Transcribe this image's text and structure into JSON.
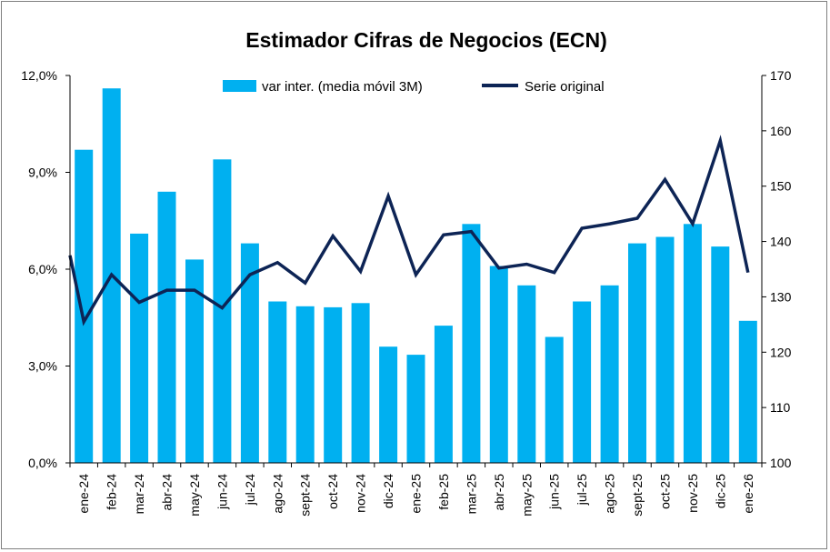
{
  "chart_data": {
    "type": "bar+line",
    "title": "Estimador Cifras de Negocios (ECN)",
    "categories": [
      "ene-24",
      "feb-24",
      "mar-24",
      "abr-24",
      "may-24",
      "jun-24",
      "jul-24",
      "ago-24",
      "sept-24",
      "oct-24",
      "nov-24",
      "dic-24",
      "ene-25",
      "feb-25",
      "mar-25",
      "abr-25",
      "may-25",
      "jun-25",
      "jul-25",
      "ago-25",
      "sept-25",
      "oct-25",
      "nov-25",
      "dic-25",
      "ene-26"
    ],
    "series": [
      {
        "name": "var inter. (media móvil 3M)",
        "type": "bar",
        "axis": "left",
        "color": "#00B0F0",
        "values": [
          9.7,
          11.6,
          7.1,
          8.4,
          6.3,
          9.4,
          6.8,
          5.0,
          4.85,
          4.82,
          4.95,
          3.6,
          3.35,
          4.25,
          7.4,
          6.1,
          5.5,
          3.9,
          5.0,
          5.5,
          6.8,
          7.0,
          7.4,
          6.7,
          4.4
        ]
      },
      {
        "name": "Serie original",
        "type": "line",
        "axis": "right",
        "color": "#0D2455",
        "values": [
          125.5,
          134,
          129,
          131.2,
          131.2,
          128,
          134,
          136.2,
          132.5,
          141,
          134.6,
          148.2,
          134,
          141.2,
          141.8,
          135.2,
          135.9,
          134.4,
          142.4,
          143.2,
          144.2,
          151.2,
          143.2,
          158.2,
          134.4
        ]
      }
    ],
    "y_left": {
      "min": 0,
      "max": 12,
      "ticks": [
        "0,0%",
        "3,0%",
        "6,0%",
        "9,0%",
        "12,0%"
      ]
    },
    "y_right": {
      "min": 100,
      "max": 170,
      "ticks": [
        "100",
        "110",
        "120",
        "130",
        "140",
        "150",
        "160",
        "170"
      ]
    },
    "line_start_value": 137.5,
    "legend": [
      "var inter. (media móvil 3M)",
      "Serie original"
    ],
    "legend_position": "top-center",
    "grid": false
  }
}
